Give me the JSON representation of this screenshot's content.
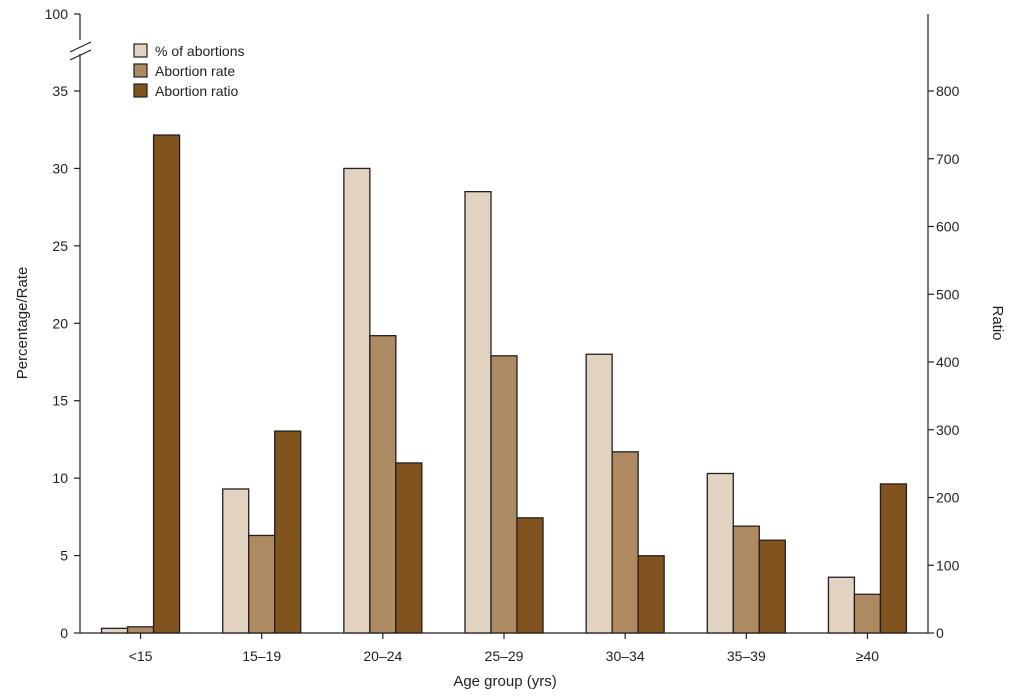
{
  "chart_data": {
    "type": "bar",
    "categories": [
      "<15",
      "15–19",
      "20–24",
      "25–29",
      "30–34",
      "35–39",
      "≥40"
    ],
    "series": [
      {
        "name": "% of abortions",
        "axis": "left",
        "color": "#e2d3c0",
        "values": [
          0.3,
          9.3,
          30.0,
          28.5,
          18.0,
          10.3,
          3.6
        ]
      },
      {
        "name": "Abortion rate",
        "axis": "left",
        "color": "#ad8a61",
        "values": [
          0.4,
          6.3,
          19.2,
          17.9,
          11.7,
          6.9,
          2.5
        ]
      },
      {
        "name": "Abortion ratio",
        "axis": "right",
        "color": "#80531f",
        "values": [
          735,
          298,
          251,
          170,
          114,
          137,
          220
        ]
      }
    ],
    "xlabel": "Age group (yrs)",
    "ylabel": "Percentage/Rate",
    "y2label": "Ratio",
    "ylim": [
      0,
      35
    ],
    "y_break_label": "100",
    "y_ticks": [
      "0",
      "5",
      "10",
      "15",
      "20",
      "25",
      "30",
      "35"
    ],
    "y2lim": [
      0,
      800
    ],
    "y2_ticks": [
      "0",
      "100",
      "200",
      "300",
      "400",
      "500",
      "600",
      "700",
      "800"
    ],
    "grid": false,
    "legend_position": "top-left"
  }
}
